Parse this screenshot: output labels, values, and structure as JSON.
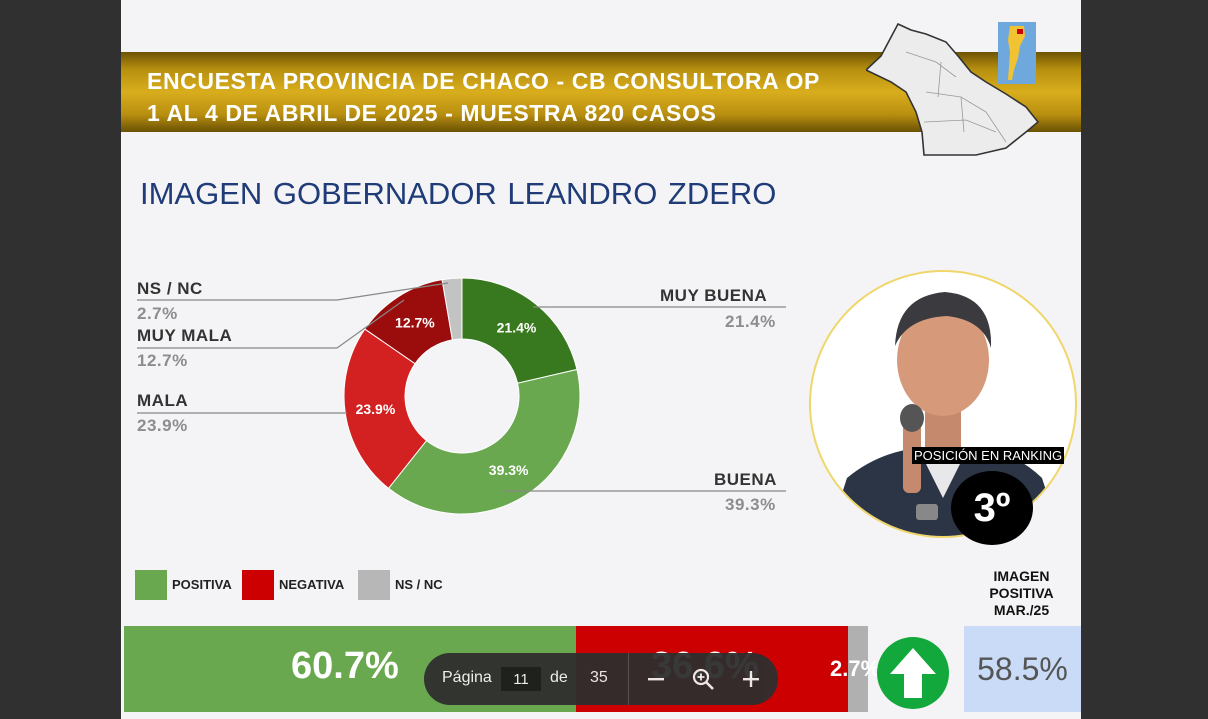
{
  "header": {
    "line1": "ENCUESTA PROVINCIA DE CHACO - CB CONSULTORA OP",
    "line2": "1 AL 4 DE ABRIL DE 2025 - MUESTRA 820 CASOS"
  },
  "title": "IMAGEN GOBERNADOR   LEANDRO ZDERO",
  "chart_data": {
    "type": "pie",
    "donut": true,
    "slices": [
      {
        "label": "MUY BUENA",
        "value": 21.4,
        "display": "21.4%",
        "color": "#38791f"
      },
      {
        "label": "BUENA",
        "value": 39.3,
        "display": "39.3%",
        "color": "#6aa84f"
      },
      {
        "label": "MALA",
        "value": 23.9,
        "display": "23.9%",
        "color": "#d32020"
      },
      {
        "label": "MUY MALA",
        "value": 12.7,
        "display": "12.7%",
        "color": "#9b0d0d"
      },
      {
        "label": "NS / NC",
        "value": 2.7,
        "display": "2.7%",
        "color": "#c3c3c3"
      }
    ]
  },
  "callouts": {
    "ns_nc": {
      "name": "NS / NC",
      "value": "2.7%"
    },
    "muy_mala": {
      "name": "MUY MALA",
      "value": "12.7%"
    },
    "mala": {
      "name": "MALA",
      "value": "23.9%"
    },
    "muy_buena": {
      "name": "MUY BUENA",
      "value": "21.4%"
    },
    "buena": {
      "name": "BUENA",
      "value": "39.3%"
    }
  },
  "ranking": {
    "label": "POSICIÓN EN RANKING",
    "value": "3º"
  },
  "legend": [
    {
      "label": "POSITIVA",
      "color": "#6aa84f"
    },
    {
      "label": "NEGATIVA",
      "color": "#cc0000"
    },
    {
      "label": "NS / NC",
      "color": "#b7b7b7"
    }
  ],
  "summary_bar": {
    "positive": {
      "value": 60.7,
      "display": "60.7%"
    },
    "negative": {
      "value": 36.6,
      "display": "36.6%"
    },
    "nsnc": {
      "value": 2.7,
      "display": "2.7%"
    }
  },
  "previous_image": {
    "label_line1": "IMAGEN",
    "label_line2": "POSITIVA",
    "label_line3": "MAR./25",
    "value": "58.5%"
  },
  "trend_icon": "arrow-up-icon",
  "pager": {
    "label": "Página",
    "current": "11",
    "of": "de",
    "total": "35",
    "zoom_out_icon": "minus-icon",
    "zoom_icon": "zoom-in-icon",
    "zoom_in_icon": "plus-icon"
  }
}
